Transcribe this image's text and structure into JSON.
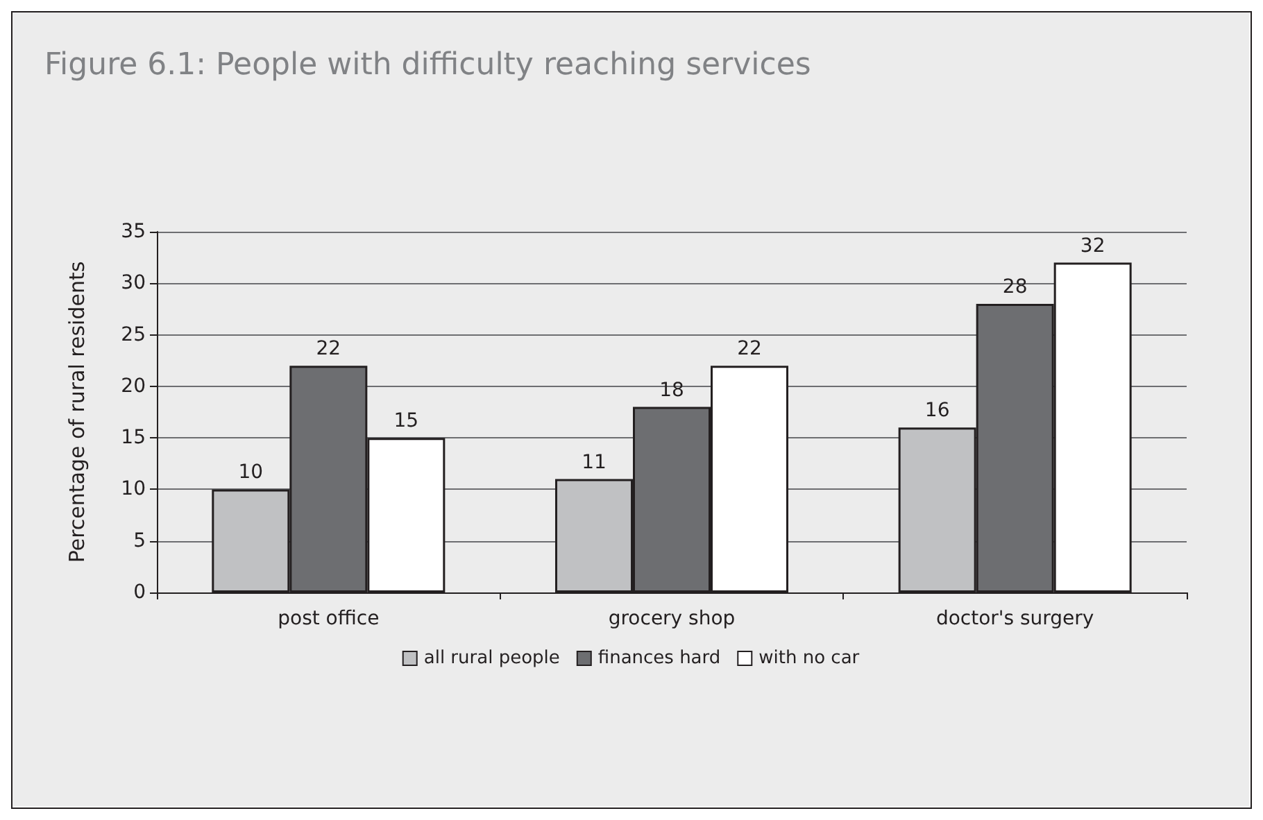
{
  "chart_data": {
    "type": "bar",
    "title": "Figure 6.1: People with difficulty reaching services",
    "ylabel": "Percentage of rural residents",
    "categories": [
      "post office",
      "grocery shop",
      "doctor's surgery"
    ],
    "series": [
      {
        "name": "all rural people",
        "color": "#c0c1c3",
        "values": [
          10,
          11,
          16
        ]
      },
      {
        "name": "finances hard",
        "color": "#6d6e71",
        "values": [
          22,
          18,
          28
        ]
      },
      {
        "name": "with no car",
        "color": "#ffffff",
        "values": [
          15,
          22,
          32
        ]
      }
    ],
    "ylim": [
      0,
      35
    ],
    "yticks": [
      0,
      5,
      10,
      15,
      20,
      25,
      30,
      35
    ],
    "grid": "y",
    "legend": "bottom",
    "data_labels": true
  }
}
